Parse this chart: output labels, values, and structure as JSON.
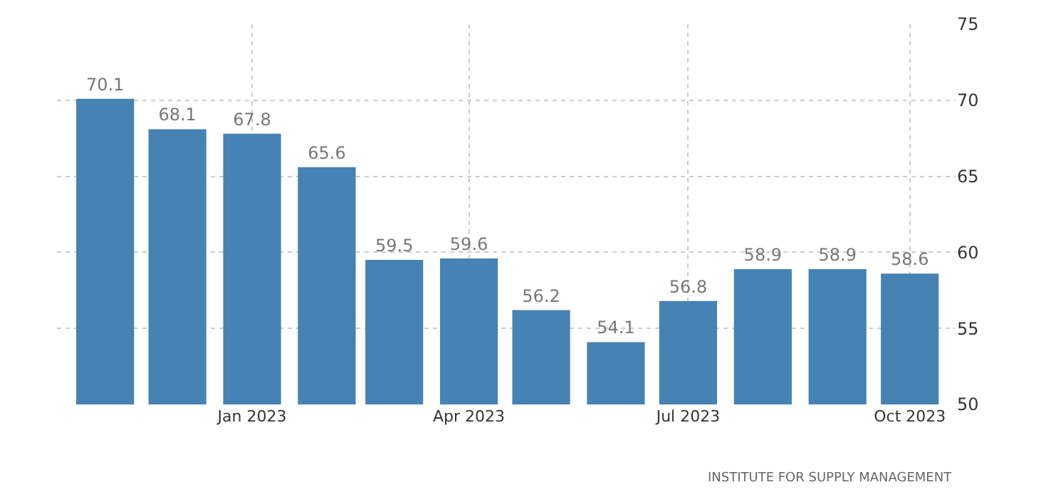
{
  "chart_data": {
    "type": "bar",
    "x": [
      "2022-11",
      "2022-12",
      "2023-01",
      "2023-02",
      "2023-03",
      "2023-04",
      "2023-05",
      "2023-06",
      "2023-07",
      "2023-08",
      "2023-09",
      "2023-10"
    ],
    "values": [
      70.1,
      68.1,
      67.8,
      65.6,
      59.5,
      59.6,
      56.2,
      54.1,
      56.8,
      58.9,
      58.9,
      58.6
    ],
    "color": "#4682b4",
    "data_labels": true,
    "xlim": [
      "2022-10-12",
      "2023-10-20"
    ],
    "xticks": [
      {
        "value": "2023-01",
        "label": "Jan 2023"
      },
      {
        "value": "2023-04",
        "label": "Apr 2023"
      },
      {
        "value": "2023-07",
        "label": "Jul 2023"
      },
      {
        "value": "2023-10",
        "label": "Oct 2023"
      }
    ],
    "ylim": [
      50,
      75
    ],
    "yticks": [
      50,
      55,
      60,
      65,
      70,
      75
    ],
    "grid": true,
    "annotations": [
      "INSTITUTE FOR SUPPLY MANAGEMENT"
    ]
  }
}
